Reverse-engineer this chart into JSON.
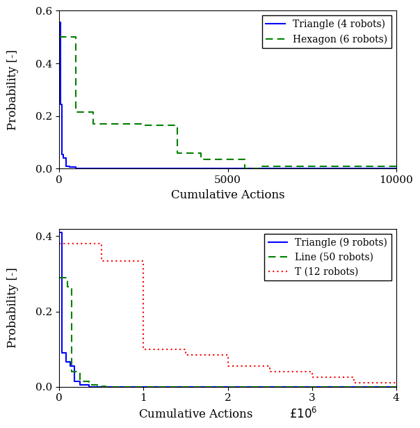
{
  "top": {
    "triangle_x": [
      0,
      30,
      30,
      80,
      80,
      130,
      130,
      200,
      200,
      300,
      300,
      500,
      500,
      10000
    ],
    "triangle_y": [
      0.555,
      0.555,
      0.245,
      0.245,
      0.055,
      0.055,
      0.04,
      0.04,
      0.01,
      0.01,
      0.005,
      0.005,
      0.0,
      0.0
    ],
    "hexagon_x": [
      0,
      500,
      500,
      1000,
      1000,
      2500,
      2500,
      3500,
      3500,
      4200,
      4200,
      5500,
      5500,
      6000,
      6000,
      7500,
      7500,
      10000
    ],
    "hexagon_y": [
      0.5,
      0.5,
      0.215,
      0.215,
      0.17,
      0.17,
      0.165,
      0.165,
      0.06,
      0.06,
      0.035,
      0.035,
      0.0,
      0.0,
      0.01,
      0.01,
      0.01,
      0.01
    ],
    "xlim": [
      0,
      10000
    ],
    "ylim": [
      0,
      0.6
    ],
    "xticks": [
      0,
      5000,
      10000
    ],
    "yticks": [
      0,
      0.2,
      0.4,
      0.6
    ],
    "xlabel": "Cumulative Actions",
    "ylabel": "Probability [-]",
    "legend1": "Triangle (4 robots)",
    "legend2": "Hexagon (6 robots)"
  },
  "bottom": {
    "triangle_x": [
      0,
      30000,
      30000,
      80000,
      80000,
      130000,
      130000,
      180000,
      180000,
      250000,
      250000,
      350000,
      350000,
      4000000
    ],
    "triangle_y": [
      0.41,
      0.41,
      0.09,
      0.09,
      0.065,
      0.065,
      0.055,
      0.055,
      0.015,
      0.015,
      0.005,
      0.005,
      0.0,
      0.0
    ],
    "line_x": [
      0,
      100000,
      100000,
      150000,
      150000,
      250000,
      250000,
      350000,
      350000,
      450000,
      450000,
      550000,
      550000,
      4000000
    ],
    "line_y": [
      0.29,
      0.29,
      0.265,
      0.265,
      0.04,
      0.04,
      0.015,
      0.015,
      0.005,
      0.005,
      0.001,
      0.001,
      0.0,
      0.0
    ],
    "t_x": [
      0,
      500000,
      500000,
      1000000,
      1000000,
      1500000,
      1500000,
      2000000,
      2000000,
      2500000,
      2500000,
      3000000,
      3000000,
      3500000,
      3500000,
      4000000
    ],
    "t_y": [
      0.38,
      0.38,
      0.335,
      0.335,
      0.1,
      0.1,
      0.085,
      0.085,
      0.055,
      0.055,
      0.04,
      0.04,
      0.025,
      0.025,
      0.01,
      0.01
    ],
    "xlim": [
      0,
      4000000
    ],
    "ylim": [
      0,
      0.42
    ],
    "xticks": [
      0,
      1000000,
      2000000,
      3000000,
      4000000
    ],
    "yticks": [
      0,
      0.2,
      0.4
    ],
    "xlabel": "Cumulative Actions",
    "ylabel": "Probability [-]",
    "legend1": "Triangle (9 robots)",
    "legend2": "Line (50 robots)",
    "legend3": "T (12 robots)"
  },
  "blue_color": "#0000FF",
  "green_color": "#008000",
  "red_color": "#FF0000",
  "linewidth": 1.5,
  "fontsize": 12,
  "tick_fontsize": 11,
  "legend_fontsize": 10
}
